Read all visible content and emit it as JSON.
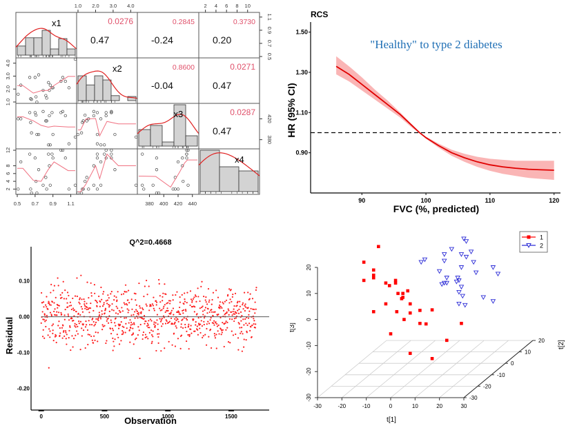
{
  "chart_data": [
    {
      "type": "scatter",
      "subtype": "pairs-matrix",
      "variables": [
        "x1",
        "x2",
        "x3",
        "x4"
      ],
      "ranges": {
        "x1": [
          0.5,
          1.15
        ],
        "x2": [
          1.0,
          4.3
        ],
        "x3": [
          365,
          447
        ],
        "x4": [
          1,
          12
        ]
      },
      "ticks": {
        "x1": [
          "0.5",
          "0.7",
          "0.9",
          "1.1"
        ],
        "x2": [
          "1.0",
          "2.0",
          "3.0",
          "4.0"
        ],
        "x3": [
          "380",
          "400",
          "420",
          "440"
        ],
        "x4_top": [
          "2",
          "4",
          "6",
          "8",
          "10"
        ],
        "x4_left": [
          "2",
          "4",
          "6",
          "8",
          "12"
        ],
        "x1_right": [
          "0.5",
          "0.7",
          "0.9",
          "1.1"
        ],
        "x3_right": [
          "380",
          "420"
        ]
      },
      "correlations": [
        {
          "row": 0,
          "col": 1,
          "r": "0.47",
          "p": "0.0276"
        },
        {
          "row": 0,
          "col": 2,
          "r": "-0.24",
          "p": "0.2845"
        },
        {
          "row": 0,
          "col": 3,
          "r": "0.20",
          "p": "0.3730"
        },
        {
          "row": 1,
          "col": 2,
          "r": "-0.04",
          "p": "0.8600"
        },
        {
          "row": 1,
          "col": 3,
          "r": "0.47",
          "p": "0.0271"
        },
        {
          "row": 2,
          "col": 3,
          "r": "0.47",
          "p": "0.0287"
        }
      ],
      "histograms": {
        "x1": [
          0.22,
          0.42,
          0.42,
          0.6,
          0.15,
          0.4,
          0.15
        ],
        "x2": [
          0.6,
          0.38,
          0.6,
          0.5,
          0.12,
          0.0,
          0.1
        ],
        "x3": [
          0.4,
          0.5,
          0.1,
          1.0,
          0.25
        ],
        "x4": [
          1.0,
          0.6,
          0.5
        ]
      },
      "points": [
        {
          "x1": 0.51,
          "x2": 1.6,
          "x3": 420,
          "x4": 2
        },
        {
          "x1": 0.54,
          "x2": 2.3,
          "x3": 420,
          "x4": 9
        },
        {
          "x1": 0.64,
          "x2": 2.9,
          "x3": 432,
          "x4": 11
        },
        {
          "x1": 0.65,
          "x2": 1.25,
          "x3": 413,
          "x4": 2
        },
        {
          "x1": 0.66,
          "x2": 1.2,
          "x3": 393,
          "x4": 1
        },
        {
          "x1": 0.7,
          "x2": 2.9,
          "x3": 432,
          "x4": 10
        },
        {
          "x1": 0.71,
          "x2": 1.4,
          "x3": 427,
          "x4": 4
        },
        {
          "x1": 0.72,
          "x2": 1.0,
          "x3": 390,
          "x4": 1
        },
        {
          "x1": 0.74,
          "x2": 3.1,
          "x3": 390,
          "x4": 7
        },
        {
          "x1": 0.79,
          "x2": 1.9,
          "x3": 434,
          "x4": 3
        },
        {
          "x1": 0.82,
          "x2": 1.5,
          "x3": 416,
          "x4": 5
        },
        {
          "x1": 0.83,
          "x2": 1.3,
          "x3": 416,
          "x4": 2
        },
        {
          "x1": 0.85,
          "x2": 2.5,
          "x3": 370,
          "x4": 11
        },
        {
          "x1": 0.86,
          "x2": 1.9,
          "x3": 426,
          "x4": 8
        },
        {
          "x1": 0.87,
          "x2": 2.3,
          "x3": 370,
          "x4": 3
        },
        {
          "x1": 0.89,
          "x2": 2.1,
          "x3": 432,
          "x4": 11
        },
        {
          "x1": 0.9,
          "x2": 2.1,
          "x3": 390,
          "x4": 10
        },
        {
          "x1": 0.99,
          "x2": 2.6,
          "x3": 432,
          "x4": 12
        },
        {
          "x1": 1.01,
          "x2": 2.9,
          "x3": 434,
          "x4": 12
        },
        {
          "x1": 1.04,
          "x2": 2.6,
          "x3": 426,
          "x4": 10
        },
        {
          "x1": 1.08,
          "x2": 2.1,
          "x3": 372,
          "x4": 2
        },
        {
          "x1": 1.15,
          "x2": 4.3,
          "x3": 385,
          "x4": 3
        }
      ]
    },
    {
      "type": "line",
      "subtype": "restricted-cubic-spline",
      "tag": "RCS",
      "title": "\"Healthy\" to type 2 diabetes",
      "xlabel": "FVC (%, predicted)",
      "ylabel": "HR (95% CI)",
      "xlim": [
        82,
        121
      ],
      "ylim": [
        0.7,
        1.55
      ],
      "xticks": [
        "90",
        "100",
        "110",
        "120"
      ],
      "yticks": [
        "0.90",
        "1.10",
        "1.30",
        "1.50"
      ],
      "reference_line": 1.0,
      "series": [
        {
          "name": "HR",
          "x": [
            86,
            88,
            90,
            92,
            94,
            96,
            98,
            99,
            100,
            102,
            104,
            106,
            108,
            110,
            112,
            114,
            116,
            118,
            120
          ],
          "y": [
            1.33,
            1.29,
            1.24,
            1.19,
            1.14,
            1.09,
            1.03,
            1.0,
            0.975,
            0.935,
            0.9,
            0.875,
            0.855,
            0.84,
            0.83,
            0.823,
            0.818,
            0.815,
            0.813
          ],
          "lower": [
            1.29,
            1.255,
            1.21,
            1.165,
            1.12,
            1.075,
            1.02,
            0.998,
            0.97,
            0.925,
            0.885,
            0.855,
            0.83,
            0.81,
            0.795,
            0.785,
            0.775,
            0.77,
            0.765
          ],
          "upper": [
            1.38,
            1.33,
            1.275,
            1.215,
            1.16,
            1.1,
            1.035,
            1.002,
            0.98,
            0.945,
            0.915,
            0.895,
            0.88,
            0.87,
            0.865,
            0.86,
            0.86,
            0.86,
            0.86
          ]
        }
      ],
      "colors": {
        "line": "#e00000",
        "band": "#f9a8a8",
        "title": "#1f6fb5"
      }
    },
    {
      "type": "scatter",
      "subtype": "residuals",
      "title": "Q^2=0.4668",
      "xlabel": "Observation",
      "ylabel": "Residual",
      "xlim": [
        -80,
        1800
      ],
      "ylim": [
        -0.26,
        0.195
      ],
      "xticks": [
        "0",
        "500",
        "1000",
        "1500"
      ],
      "yticks": [
        "-0.20",
        "-0.10",
        "0.00",
        "0.10"
      ],
      "n_points": 1700,
      "residual_sd": 0.055,
      "reference_line": 0.0,
      "color": "#ff2020"
    },
    {
      "type": "scatter",
      "subtype": "3d-score-plot",
      "xlabel": "t[1]",
      "ylabel": "t[2]",
      "zlabel": "t[3]",
      "xlim": [
        -30,
        30
      ],
      "ylim": [
        -30,
        20
      ],
      "zlim": [
        -30,
        20
      ],
      "xticks": [
        "-30",
        "-20",
        "-10",
        "0",
        "10",
        "20",
        "30"
      ],
      "yticks": [
        "-30",
        "-20",
        "-10",
        "0",
        "10",
        "20"
      ],
      "zticks": [
        "-30",
        "-20",
        "-10",
        "0",
        "10",
        "20"
      ],
      "legend": [
        {
          "label": "1",
          "color": "#ff0000",
          "marker": "square"
        },
        {
          "label": "2",
          "color": "#2a2ad6",
          "marker": "triangle-down"
        }
      ],
      "legend_position": "top-right",
      "series": [
        {
          "name": "1",
          "projected": [
            [
              -5,
              28
            ],
            [
              -11,
              22
            ],
            [
              -7,
              19
            ],
            [
              -7,
              16
            ],
            [
              -7,
              17
            ],
            [
              -11,
              15
            ],
            [
              2,
              15
            ],
            [
              2,
              14
            ],
            [
              -2,
              14
            ],
            [
              -0.5,
              13
            ],
            [
              7,
              11
            ],
            [
              3,
              10
            ],
            [
              5,
              10
            ],
            [
              4.5,
              8
            ],
            [
              5,
              8.5
            ],
            [
              8,
              6
            ],
            [
              -2,
              6
            ],
            [
              -7,
              3
            ],
            [
              2.5,
              3
            ],
            [
              8,
              2.5
            ],
            [
              12,
              3.5
            ],
            [
              17,
              3.7
            ],
            [
              5.5,
              0
            ],
            [
              12,
              -1.5
            ],
            [
              14.5,
              -1.7
            ],
            [
              29,
              -1.5
            ],
            [
              0,
              -5.5
            ],
            [
              23,
              -8
            ],
            [
              8,
              -13
            ],
            [
              17,
              -15
            ]
          ]
        },
        {
          "name": "2",
          "projected": [
            [
              30,
              31
            ],
            [
              31,
              30
            ],
            [
              25,
              27
            ],
            [
              33,
              26
            ],
            [
              22,
              25
            ],
            [
              29,
              25
            ],
            [
              31,
              24
            ],
            [
              14,
              23
            ],
            [
              12.5,
              22
            ],
            [
              22,
              22.5
            ],
            [
              34,
              22
            ],
            [
              29,
              20
            ],
            [
              42,
              20
            ],
            [
              20,
              18.5
            ],
            [
              35,
              18
            ],
            [
              44,
              17.5
            ],
            [
              23,
              16
            ],
            [
              27.5,
              16
            ],
            [
              28,
              15
            ],
            [
              27,
              14.5
            ],
            [
              22,
              14
            ],
            [
              23,
              14
            ],
            [
              21,
              13.5
            ],
            [
              29,
              12.5
            ],
            [
              28,
              10.5
            ],
            [
              29.5,
              9
            ],
            [
              38,
              8.5
            ],
            [
              42,
              7
            ],
            [
              28,
              6
            ],
            [
              30.5,
              5.5
            ]
          ]
        }
      ]
    }
  ]
}
